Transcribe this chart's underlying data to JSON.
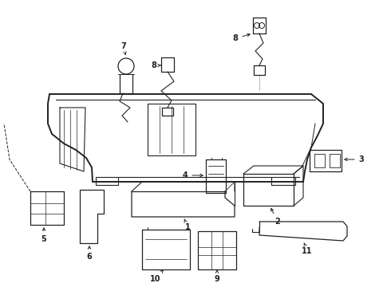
{
  "bg_color": "#ffffff",
  "lc": "#222222",
  "figsize": [
    4.9,
    3.6
  ],
  "dpi": 100,
  "xlim": [
    0,
    490
  ],
  "ylim": [
    0,
    360
  ]
}
